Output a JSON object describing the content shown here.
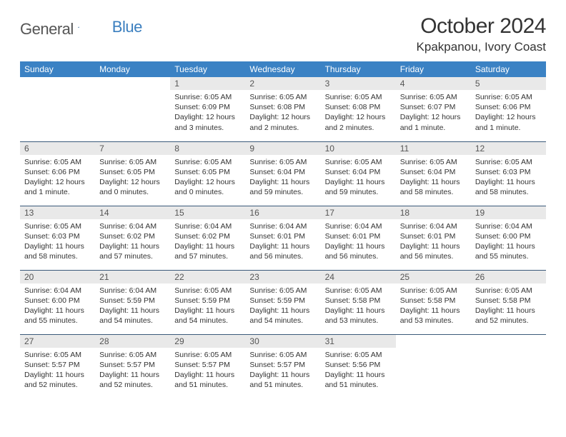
{
  "logo": {
    "text1": "General",
    "text2": "Blue"
  },
  "title": "October 2024",
  "location": "Kpakpanou, Ivory Coast",
  "colors": {
    "header_bg": "#3b82c4",
    "header_text": "#ffffff",
    "daynum_bg": "#e9e9e9",
    "daynum_text": "#555555",
    "body_text": "#333333",
    "row_border": "#3b5a7a",
    "logo_blue": "#3b7fbf",
    "logo_gray": "#555555",
    "page_bg": "#ffffff"
  },
  "typography": {
    "title_fontsize": 30,
    "location_fontsize": 17,
    "header_fontsize": 12,
    "daynum_fontsize": 12,
    "cell_fontsize": 10.5
  },
  "day_headers": [
    "Sunday",
    "Monday",
    "Tuesday",
    "Wednesday",
    "Thursday",
    "Friday",
    "Saturday"
  ],
  "weeks": [
    [
      null,
      null,
      {
        "n": "1",
        "sunrise": "6:05 AM",
        "sunset": "6:09 PM",
        "daylight": "12 hours and 3 minutes."
      },
      {
        "n": "2",
        "sunrise": "6:05 AM",
        "sunset": "6:08 PM",
        "daylight": "12 hours and 2 minutes."
      },
      {
        "n": "3",
        "sunrise": "6:05 AM",
        "sunset": "6:08 PM",
        "daylight": "12 hours and 2 minutes."
      },
      {
        "n": "4",
        "sunrise": "6:05 AM",
        "sunset": "6:07 PM",
        "daylight": "12 hours and 1 minute."
      },
      {
        "n": "5",
        "sunrise": "6:05 AM",
        "sunset": "6:06 PM",
        "daylight": "12 hours and 1 minute."
      }
    ],
    [
      {
        "n": "6",
        "sunrise": "6:05 AM",
        "sunset": "6:06 PM",
        "daylight": "12 hours and 1 minute."
      },
      {
        "n": "7",
        "sunrise": "6:05 AM",
        "sunset": "6:05 PM",
        "daylight": "12 hours and 0 minutes."
      },
      {
        "n": "8",
        "sunrise": "6:05 AM",
        "sunset": "6:05 PM",
        "daylight": "12 hours and 0 minutes."
      },
      {
        "n": "9",
        "sunrise": "6:05 AM",
        "sunset": "6:04 PM",
        "daylight": "11 hours and 59 minutes."
      },
      {
        "n": "10",
        "sunrise": "6:05 AM",
        "sunset": "6:04 PM",
        "daylight": "11 hours and 59 minutes."
      },
      {
        "n": "11",
        "sunrise": "6:05 AM",
        "sunset": "6:04 PM",
        "daylight": "11 hours and 58 minutes."
      },
      {
        "n": "12",
        "sunrise": "6:05 AM",
        "sunset": "6:03 PM",
        "daylight": "11 hours and 58 minutes."
      }
    ],
    [
      {
        "n": "13",
        "sunrise": "6:05 AM",
        "sunset": "6:03 PM",
        "daylight": "11 hours and 58 minutes."
      },
      {
        "n": "14",
        "sunrise": "6:04 AM",
        "sunset": "6:02 PM",
        "daylight": "11 hours and 57 minutes."
      },
      {
        "n": "15",
        "sunrise": "6:04 AM",
        "sunset": "6:02 PM",
        "daylight": "11 hours and 57 minutes."
      },
      {
        "n": "16",
        "sunrise": "6:04 AM",
        "sunset": "6:01 PM",
        "daylight": "11 hours and 56 minutes."
      },
      {
        "n": "17",
        "sunrise": "6:04 AM",
        "sunset": "6:01 PM",
        "daylight": "11 hours and 56 minutes."
      },
      {
        "n": "18",
        "sunrise": "6:04 AM",
        "sunset": "6:01 PM",
        "daylight": "11 hours and 56 minutes."
      },
      {
        "n": "19",
        "sunrise": "6:04 AM",
        "sunset": "6:00 PM",
        "daylight": "11 hours and 55 minutes."
      }
    ],
    [
      {
        "n": "20",
        "sunrise": "6:04 AM",
        "sunset": "6:00 PM",
        "daylight": "11 hours and 55 minutes."
      },
      {
        "n": "21",
        "sunrise": "6:04 AM",
        "sunset": "5:59 PM",
        "daylight": "11 hours and 54 minutes."
      },
      {
        "n": "22",
        "sunrise": "6:05 AM",
        "sunset": "5:59 PM",
        "daylight": "11 hours and 54 minutes."
      },
      {
        "n": "23",
        "sunrise": "6:05 AM",
        "sunset": "5:59 PM",
        "daylight": "11 hours and 54 minutes."
      },
      {
        "n": "24",
        "sunrise": "6:05 AM",
        "sunset": "5:58 PM",
        "daylight": "11 hours and 53 minutes."
      },
      {
        "n": "25",
        "sunrise": "6:05 AM",
        "sunset": "5:58 PM",
        "daylight": "11 hours and 53 minutes."
      },
      {
        "n": "26",
        "sunrise": "6:05 AM",
        "sunset": "5:58 PM",
        "daylight": "11 hours and 52 minutes."
      }
    ],
    [
      {
        "n": "27",
        "sunrise": "6:05 AM",
        "sunset": "5:57 PM",
        "daylight": "11 hours and 52 minutes."
      },
      {
        "n": "28",
        "sunrise": "6:05 AM",
        "sunset": "5:57 PM",
        "daylight": "11 hours and 52 minutes."
      },
      {
        "n": "29",
        "sunrise": "6:05 AM",
        "sunset": "5:57 PM",
        "daylight": "11 hours and 51 minutes."
      },
      {
        "n": "30",
        "sunrise": "6:05 AM",
        "sunset": "5:57 PM",
        "daylight": "11 hours and 51 minutes."
      },
      {
        "n": "31",
        "sunrise": "6:05 AM",
        "sunset": "5:56 PM",
        "daylight": "11 hours and 51 minutes."
      },
      null,
      null
    ]
  ],
  "labels": {
    "sunrise": "Sunrise:",
    "sunset": "Sunset:",
    "daylight": "Daylight:"
  }
}
